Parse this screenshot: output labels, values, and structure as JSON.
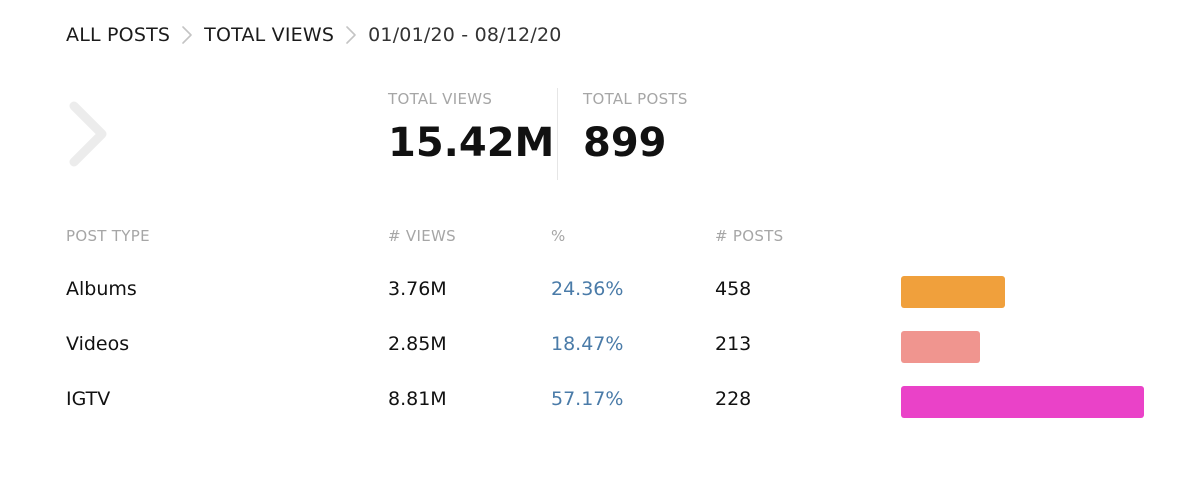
{
  "breadcrumb": {
    "items": [
      {
        "label": "ALL POSTS"
      },
      {
        "label": "TOTAL VIEWS"
      }
    ],
    "current": "01/01/20 - 08/12/20"
  },
  "icons": {
    "separator": "chevron-right-icon",
    "back": "chevron-right-icon"
  },
  "stats": {
    "total_views": {
      "label": "TOTAL VIEWS",
      "value": "15.42M"
    },
    "total_posts": {
      "label": "TOTAL POSTS",
      "value": "899"
    }
  },
  "table": {
    "headers": {
      "post_type": "POST TYPE",
      "views": "# VIEWS",
      "percent": "%",
      "posts": "# POSTS"
    },
    "rows": [
      {
        "type": "Albums",
        "views": "3.76M",
        "percent": "24.36%",
        "posts": "458",
        "share": 0.4262,
        "color": "#f0a03c"
      },
      {
        "type": "Videos",
        "views": "2.85M",
        "percent": "18.47%",
        "posts": "213",
        "share": 0.3231,
        "color": "#f0958f"
      },
      {
        "type": "IGTV",
        "views": "8.81M",
        "percent": "57.17%",
        "posts": "228",
        "share": 1.0,
        "color": "#ea42c8"
      }
    ]
  }
}
